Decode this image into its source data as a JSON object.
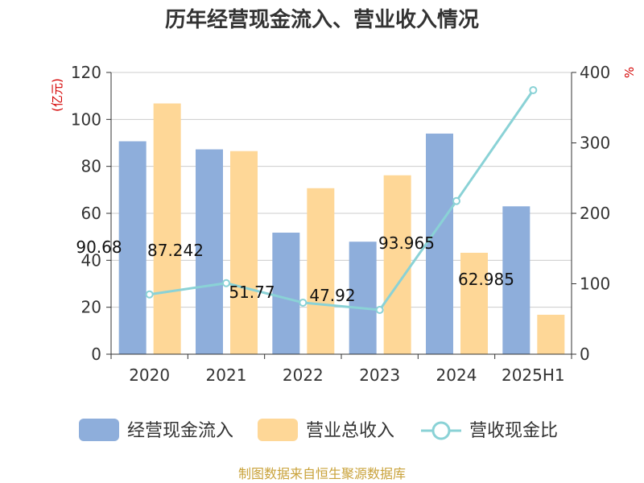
{
  "chart_data": {
    "type": "bar",
    "title": "历年经营现金流入、营业收入情况",
    "categories": [
      "2020",
      "2021",
      "2022",
      "2023",
      "2024",
      "2025H1"
    ],
    "left_axis": {
      "unit": "(亿元)",
      "ylim": [
        0,
        120
      ],
      "ticks": [
        "0",
        "20",
        "40",
        "60",
        "80",
        "100",
        "120"
      ]
    },
    "right_axis": {
      "unit": "%",
      "ylim": [
        0,
        400
      ],
      "ticks": [
        "0",
        "100",
        "200",
        "300",
        "400"
      ]
    },
    "series": [
      {
        "name": "经营现金流入",
        "kind": "bar",
        "axis": "left",
        "color": "#8eaedb",
        "values": [
          90.68,
          87.242,
          51.77,
          47.92,
          93.965,
          62.985
        ],
        "labels": [
          "90.68",
          "87.242",
          "51.77",
          "47.92",
          "93.965",
          "62.985"
        ]
      },
      {
        "name": "营业总收入",
        "kind": "bar",
        "axis": "left",
        "color": "#fed797",
        "values": [
          106.8,
          86.5,
          70.7,
          76.2,
          43.2,
          16.8
        ]
      },
      {
        "name": "营收现金比",
        "kind": "line",
        "axis": "right",
        "color": "#8ad2d6",
        "values": [
          84.9,
          100.9,
          73.2,
          62.9,
          217.5,
          374.9
        ]
      }
    ],
    "grid": true,
    "legend_position": "bottom"
  },
  "source": "制图数据来自恒生聚源数据库"
}
